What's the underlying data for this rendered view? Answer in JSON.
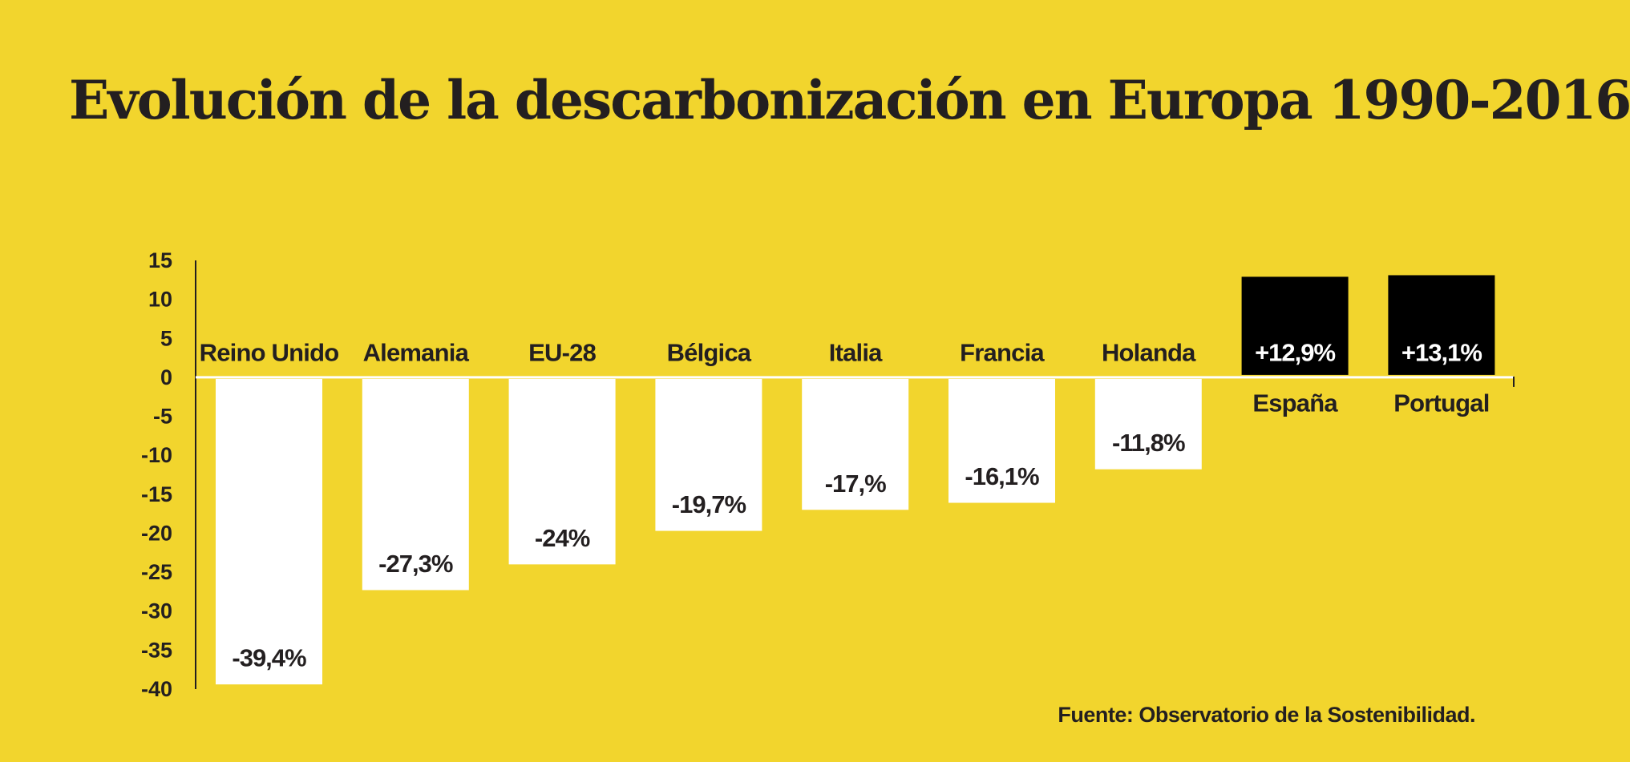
{
  "colors": {
    "background": "#F2D52D",
    "negative_bar": "#FFFFFF",
    "positive_bar": "#000000",
    "text": "#231F20",
    "positive_text": "#FFFFFF"
  },
  "chart_data": {
    "type": "bar",
    "title": "Evolución de la descarbonización en Europa 1990-2016",
    "source": "Fuente: Observatorio de la Sostenibilidad.",
    "xlabel": "",
    "ylabel": "",
    "ylim": [
      -40,
      15
    ],
    "yticks": [
      15,
      10,
      5,
      0,
      -5,
      -10,
      -15,
      -20,
      -25,
      -30,
      -35,
      -40
    ],
    "grid": false,
    "legend": "none",
    "categories": [
      "Reino Unido",
      "Alemania",
      "EU-28",
      "Bélgica",
      "Italia",
      "Francia",
      "Holanda",
      "España",
      "Portugal"
    ],
    "values": [
      -39.4,
      -27.3,
      -24,
      -19.7,
      -17,
      -16.1,
      -11.8,
      12.9,
      13.1
    ],
    "value_labels": [
      "-39,4%",
      "-27,3%",
      "-24%",
      "-19,7%",
      "-17,%",
      "-16,1%",
      "-11,8%",
      "+12,9%",
      "+13,1%"
    ]
  }
}
